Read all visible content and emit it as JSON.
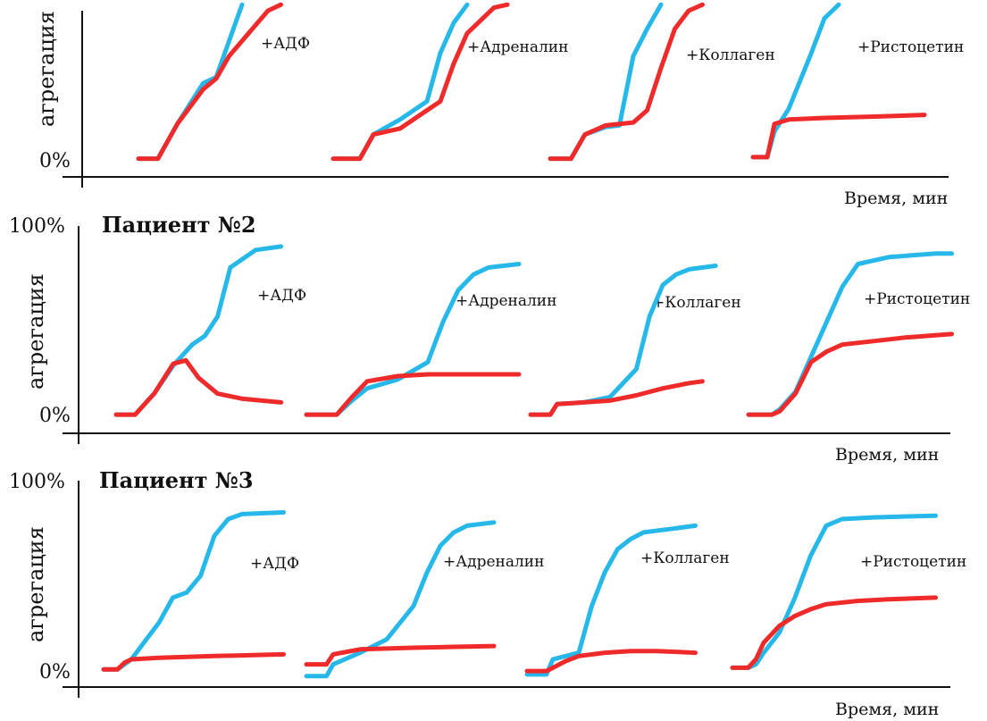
{
  "colors": {
    "control": "#27b8ea",
    "patient": "#ef2a2a",
    "axis": "#111111"
  },
  "chart_data": [
    {
      "type": "line",
      "title": "",
      "ylabel": "агрегация",
      "xlabel": "Время, мин",
      "y_ticks": [
        "0%"
      ],
      "ylim": [
        0,
        100
      ],
      "subplots": [
        {
          "label": "+АДФ",
          "series": [
            {
              "color": "control",
              "x": [
                0,
                1.5,
                3,
                5,
                6,
                7,
                8
              ],
              "y": [
                2,
                2,
                25,
                52,
                56,
                80,
                104
              ]
            },
            {
              "color": "patient",
              "x": [
                0,
                1.5,
                3,
                5,
                6,
                7,
                9,
                10,
                11
              ],
              "y": [
                2,
                2,
                25,
                48,
                55,
                70,
                90,
                100,
                104
              ]
            }
          ]
        },
        {
          "label": "+Адреналин",
          "series": [
            {
              "color": "control",
              "x": [
                0,
                2,
                3,
                5,
                7,
                8,
                9,
                10
              ],
              "y": [
                2,
                2,
                18,
                28,
                40,
                72,
                92,
                104
              ]
            },
            {
              "color": "patient",
              "x": [
                0,
                2,
                3,
                5,
                7,
                8,
                9,
                10,
                12,
                13
              ],
              "y": [
                2,
                2,
                18,
                22,
                34,
                40,
                65,
                85,
                102,
                104
              ]
            }
          ]
        },
        {
          "label": "+Коллаген",
          "series": [
            {
              "color": "control",
              "x": [
                0,
                1.5,
                2.5,
                4,
                5,
                6,
                7,
                8
              ],
              "y": [
                2,
                2,
                18,
                23,
                24,
                70,
                88,
                104
              ]
            },
            {
              "color": "patient",
              "x": [
                0,
                1.5,
                2.5,
                4,
                6,
                7,
                8,
                9,
                10,
                11
              ],
              "y": [
                2,
                2,
                18,
                24,
                26,
                34,
                62,
                88,
                100,
                104
              ]
            }
          ]
        },
        {
          "label": "+Ристоцетин",
          "series": [
            {
              "color": "control",
              "x": [
                0,
                1,
                1.5,
                2.5,
                4,
                5,
                6
              ],
              "y": [
                3,
                3,
                20,
                35,
                70,
                95,
                104
              ]
            },
            {
              "color": "patient",
              "x": [
                0,
                1,
                1.5,
                2.5,
                5,
                9,
                12
              ],
              "y": [
                3,
                3,
                25,
                28,
                29,
                30,
                31
              ]
            }
          ]
        }
      ]
    },
    {
      "type": "line",
      "title": "Пациент №2",
      "ylabel": "агрегация",
      "xlabel": "Время, мин",
      "y_ticks": [
        "100%",
        "0%"
      ],
      "ylim": [
        0,
        100
      ],
      "subplots": [
        {
          "label": "+АДФ",
          "series": [
            {
              "color": "control",
              "x": [
                0,
                1.5,
                3,
                4.5,
                6,
                7,
                8,
                9,
                11,
                13
              ],
              "y": [
                2,
                2,
                14,
                30,
                42,
                47,
                58,
                86,
                96,
                98
              ]
            },
            {
              "color": "patient",
              "x": [
                0,
                1.5,
                3,
                4.5,
                5.5,
                6.5,
                8,
                10,
                13
              ],
              "y": [
                2,
                2,
                14,
                31,
                33,
                23,
                14,
                11,
                9
              ]
            }
          ]
        },
        {
          "label": "+Адреналин",
          "series": [
            {
              "color": "control",
              "x": [
                0,
                2,
                3,
                4,
                6,
                8,
                9,
                10,
                11,
                12,
                14
              ],
              "y": [
                2,
                2,
                10,
                17,
                22,
                32,
                55,
                73,
                82,
                86,
                88
              ]
            },
            {
              "color": "patient",
              "x": [
                0,
                2,
                3,
                4,
                6,
                8,
                14
              ],
              "y": [
                2,
                2,
                12,
                21,
                24,
                25,
                25
              ]
            }
          ]
        },
        {
          "label": "+Коллаген",
          "series": [
            {
              "color": "control",
              "x": [
                0,
                1.5,
                2,
                4,
                6,
                8,
                9,
                10,
                11,
                12,
                14
              ],
              "y": [
                2,
                2,
                8,
                9,
                12,
                28,
                58,
                76,
                82,
                85,
                87
              ]
            },
            {
              "color": "patient",
              "x": [
                0,
                1.5,
                2,
                4,
                6,
                8,
                10,
                12,
                13
              ],
              "y": [
                2,
                2,
                8,
                9,
                10,
                13,
                17,
                20,
                21
              ]
            }
          ]
        },
        {
          "label": "+Ристоцетин",
          "series": [
            {
              "color": "control",
              "x": [
                0,
                1.5,
                2,
                3,
                4,
                5,
                6,
                7,
                9,
                12,
                13
              ],
              "y": [
                2,
                2,
                5,
                15,
                35,
                55,
                75,
                88,
                92,
                94,
                94
              ]
            },
            {
              "color": "patient",
              "x": [
                0,
                1.5,
                2,
                3,
                4,
                5,
                6,
                8,
                10,
                13
              ],
              "y": [
                2,
                2,
                4,
                14,
                32,
                38,
                42,
                44,
                46,
                48
              ]
            }
          ]
        }
      ]
    },
    {
      "type": "line",
      "title": "Пациент №3",
      "ylabel": "агрегация",
      "xlabel": "Время, мин",
      "y_ticks": [
        "100%",
        "0%"
      ],
      "ylim": [
        0,
        100
      ],
      "subplots": [
        {
          "label": "+АДФ",
          "series": [
            {
              "color": "control",
              "x": [
                0,
                1,
                2,
                4,
                5,
                6,
                7,
                8,
                9,
                10,
                13
              ],
              "y": [
                2,
                2,
                8,
                30,
                45,
                48,
                58,
                82,
                92,
                95,
                96
              ]
            },
            {
              "color": "patient",
              "x": [
                0,
                1,
                1.5,
                2,
                4,
                8,
                13
              ],
              "y": [
                2,
                2,
                6,
                8,
                9,
                10,
                11
              ]
            }
          ]
        },
        {
          "label": "+Адреналин",
          "series": [
            {
              "color": "control",
              "x": [
                0,
                1.5,
                2,
                4,
                6,
                8,
                9,
                10,
                11,
                12,
                14
              ],
              "y": [
                -2,
                -2,
                5,
                12,
                20,
                40,
                60,
                76,
                84,
                88,
                90
              ]
            },
            {
              "color": "patient",
              "x": [
                0,
                1.5,
                2,
                4,
                8,
                14
              ],
              "y": [
                5,
                5,
                11,
                14,
                15,
                16
              ]
            }
          ]
        },
        {
          "label": "+Коллаген",
          "series": [
            {
              "color": "control",
              "x": [
                0,
                1.5,
                2,
                3,
                4,
                5,
                6,
                7,
                8,
                9,
                11,
                13
              ],
              "y": [
                -1,
                -1,
                8,
                10,
                12,
                40,
                60,
                74,
                80,
                84,
                86,
                88
              ]
            },
            {
              "color": "patient",
              "x": [
                0,
                1.5,
                2,
                3,
                4,
                6,
                8,
                10,
                13
              ],
              "y": [
                1,
                1,
                3,
                7,
                10,
                12,
                13,
                13,
                12
              ]
            }
          ]
        },
        {
          "label": "+Ристоцетин",
          "series": [
            {
              "color": "control",
              "x": [
                0,
                1,
                1.5,
                2,
                3,
                4,
                5,
                6,
                7,
                9,
                13
              ],
              "y": [
                3,
                3,
                5,
                12,
                24,
                45,
                70,
                88,
                92,
                93,
                94
              ]
            },
            {
              "color": "patient",
              "x": [
                0,
                1,
                1.5,
                2,
                3,
                4,
                5,
                6,
                8,
                10,
                13
              ],
              "y": [
                3,
                3,
                8,
                18,
                28,
                34,
                38,
                41,
                43,
                44,
                45
              ]
            }
          ]
        }
      ]
    }
  ]
}
